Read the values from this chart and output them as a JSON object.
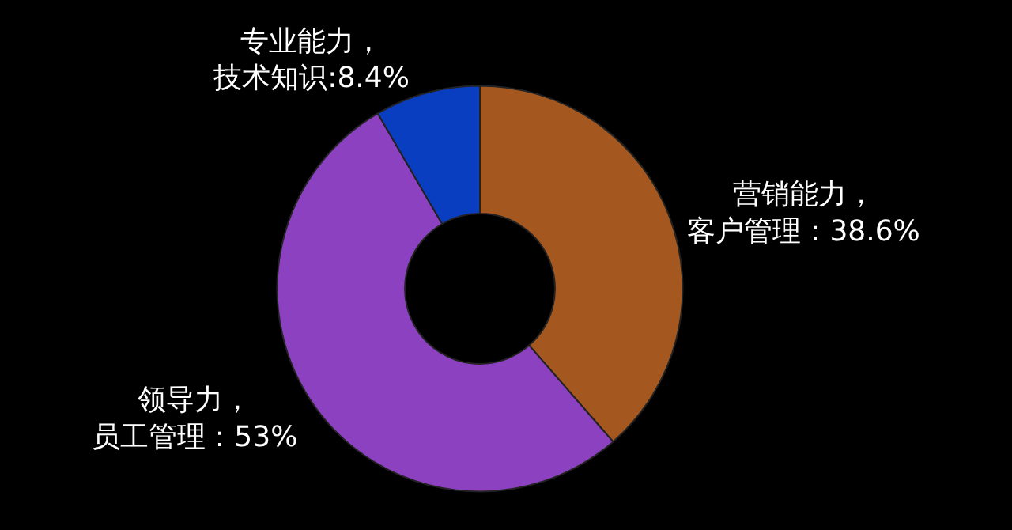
{
  "chart_data": {
    "type": "donut",
    "categories": [
      "营销能力，客户管理：38.6%",
      "领导力，员工管理：53%",
      "专业能力，技术知识:8.4%"
    ],
    "values": [
      38.6,
      53,
      8.4
    ],
    "colors": [
      "#a4581f",
      "#8b41c0",
      "#0a3ec0"
    ],
    "legend": false
  }
}
